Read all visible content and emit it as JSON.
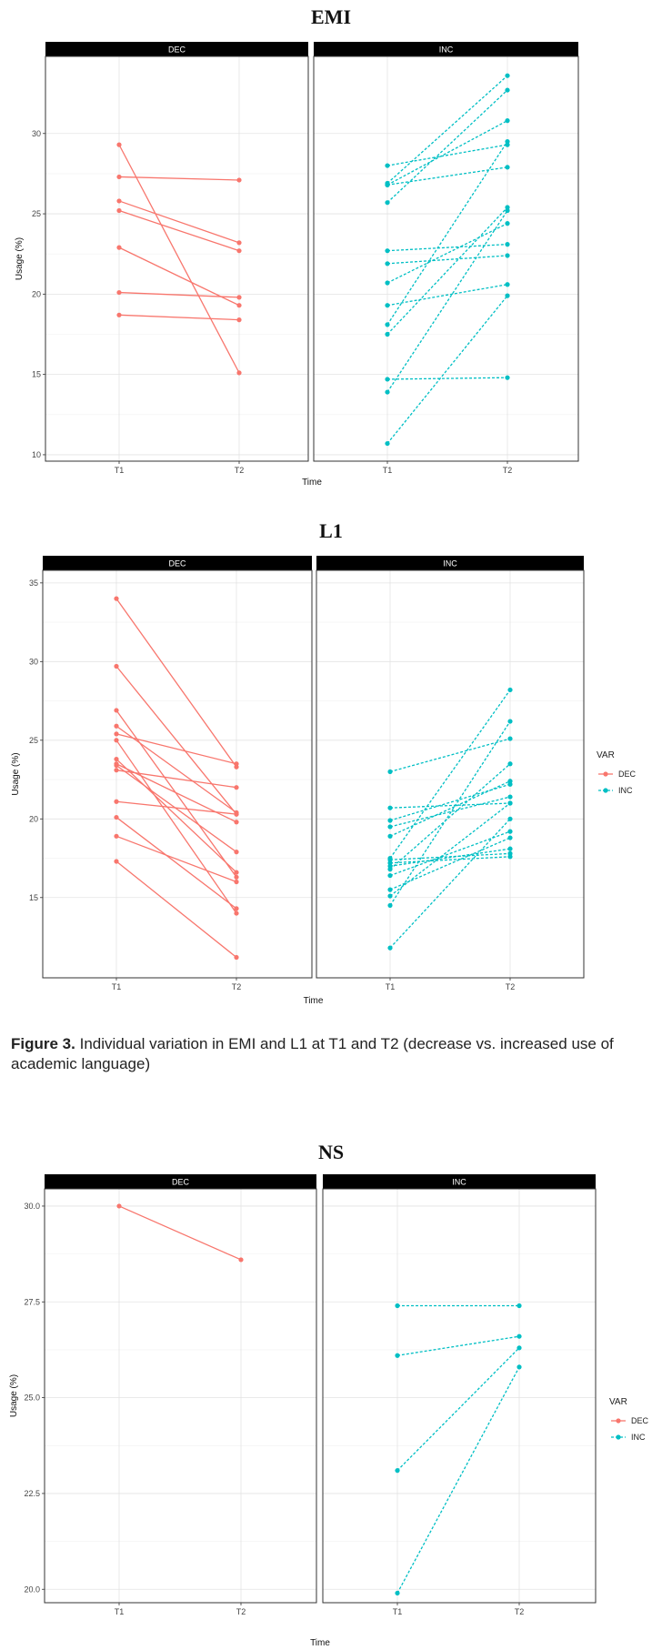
{
  "caption": {
    "label": "Figure 3.",
    "text": "Individual variation in EMI and L1 at T1 and T2 (decrease vs. increased use of academic language)"
  },
  "chart_data": [
    {
      "type": "line",
      "title": "EMI",
      "xlabel": "Time",
      "ylabel": "Usage (%)",
      "x": [
        "T1",
        "T2"
      ],
      "ylim": [
        9.6,
        34.8
      ],
      "yticks": [
        10,
        15,
        20,
        25,
        30
      ],
      "grid": true,
      "facets": [
        {
          "name": "DEC",
          "color": "#F8766D",
          "linestyle": "solid",
          "lines": [
            [
              29.3,
              15.1
            ],
            [
              27.3,
              27.1
            ],
            [
              25.8,
              23.2
            ],
            [
              25.2,
              22.7
            ],
            [
              22.9,
              19.3
            ],
            [
              20.1,
              19.8
            ],
            [
              18.7,
              18.4
            ]
          ]
        },
        {
          "name": "INC",
          "color": "#00BFC4",
          "linestyle": "dashed",
          "lines": [
            [
              28.0,
              29.3
            ],
            [
              26.9,
              33.6
            ],
            [
              26.8,
              30.8
            ],
            [
              25.7,
              32.7
            ],
            [
              22.7,
              23.1
            ],
            [
              21.9,
              22.4
            ],
            [
              20.7,
              24.4
            ],
            [
              19.3,
              20.6
            ],
            [
              18.1,
              29.5
            ],
            [
              17.5,
              25.4
            ],
            [
              14.7,
              14.8
            ],
            [
              13.9,
              25.2
            ],
            [
              10.7,
              19.9
            ],
            [
              26.8,
              27.9
            ]
          ]
        }
      ]
    },
    {
      "type": "line",
      "title": "L1",
      "xlabel": "Time",
      "ylabel": "Usage (%)",
      "x": [
        "T1",
        "T2"
      ],
      "ylim": [
        9.9,
        35.8
      ],
      "yticks": [
        15,
        20,
        25,
        30,
        35
      ],
      "grid": true,
      "legend": {
        "title": "VAR",
        "entries": [
          "DEC",
          "INC"
        ],
        "position": "right"
      },
      "facets": [
        {
          "name": "DEC",
          "color": "#F8766D",
          "linestyle": "solid",
          "lines": [
            [
              34.0,
              23.3
            ],
            [
              29.7,
              20.3
            ],
            [
              26.9,
              16.3
            ],
            [
              25.9,
              20.4
            ],
            [
              25.4,
              23.5
            ],
            [
              23.8,
              16.6
            ],
            [
              23.5,
              19.8
            ],
            [
              23.1,
              22.0
            ],
            [
              23.4,
              17.9
            ],
            [
              21.1,
              20.3
            ],
            [
              20.1,
              14.3
            ],
            [
              18.9,
              16.0
            ],
            [
              17.3,
              11.2
            ],
            [
              25.0,
              14.0
            ]
          ]
        },
        {
          "name": "INC",
          "color": "#00BFC4",
          "linestyle": "dashed",
          "lines": [
            [
              23.0,
              25.1
            ],
            [
              20.7,
              21.0
            ],
            [
              19.9,
              22.2
            ],
            [
              19.5,
              21.4
            ],
            [
              18.9,
              22.4
            ],
            [
              17.5,
              28.2
            ],
            [
              17.2,
              17.6
            ],
            [
              17.0,
              18.1
            ],
            [
              16.8,
              23.5
            ],
            [
              16.4,
              19.2
            ],
            [
              15.5,
              18.8
            ],
            [
              15.1,
              21.0
            ],
            [
              14.5,
              26.2
            ],
            [
              11.8,
              20.0
            ],
            [
              17.4,
              17.8
            ]
          ]
        }
      ]
    },
    {
      "type": "line",
      "title": "NS",
      "xlabel": "Time",
      "ylabel": "Usage (%)",
      "x": [
        "T1",
        "T2"
      ],
      "ylim": [
        19.65,
        30.45
      ],
      "yticks": [
        20.0,
        22.5,
        25.0,
        27.5,
        30.0
      ],
      "grid": true,
      "legend": {
        "title": "VAR",
        "entries": [
          "DEC",
          "INC"
        ],
        "position": "right"
      },
      "facets": [
        {
          "name": "DEC",
          "color": "#F8766D",
          "linestyle": "solid",
          "lines": [
            [
              30.0,
              28.6
            ]
          ]
        },
        {
          "name": "INC",
          "color": "#00BFC4",
          "linestyle": "dashed",
          "lines": [
            [
              27.4,
              27.4
            ],
            [
              26.1,
              26.6
            ],
            [
              23.1,
              26.3
            ],
            [
              19.9,
              25.8
            ]
          ]
        }
      ]
    }
  ]
}
